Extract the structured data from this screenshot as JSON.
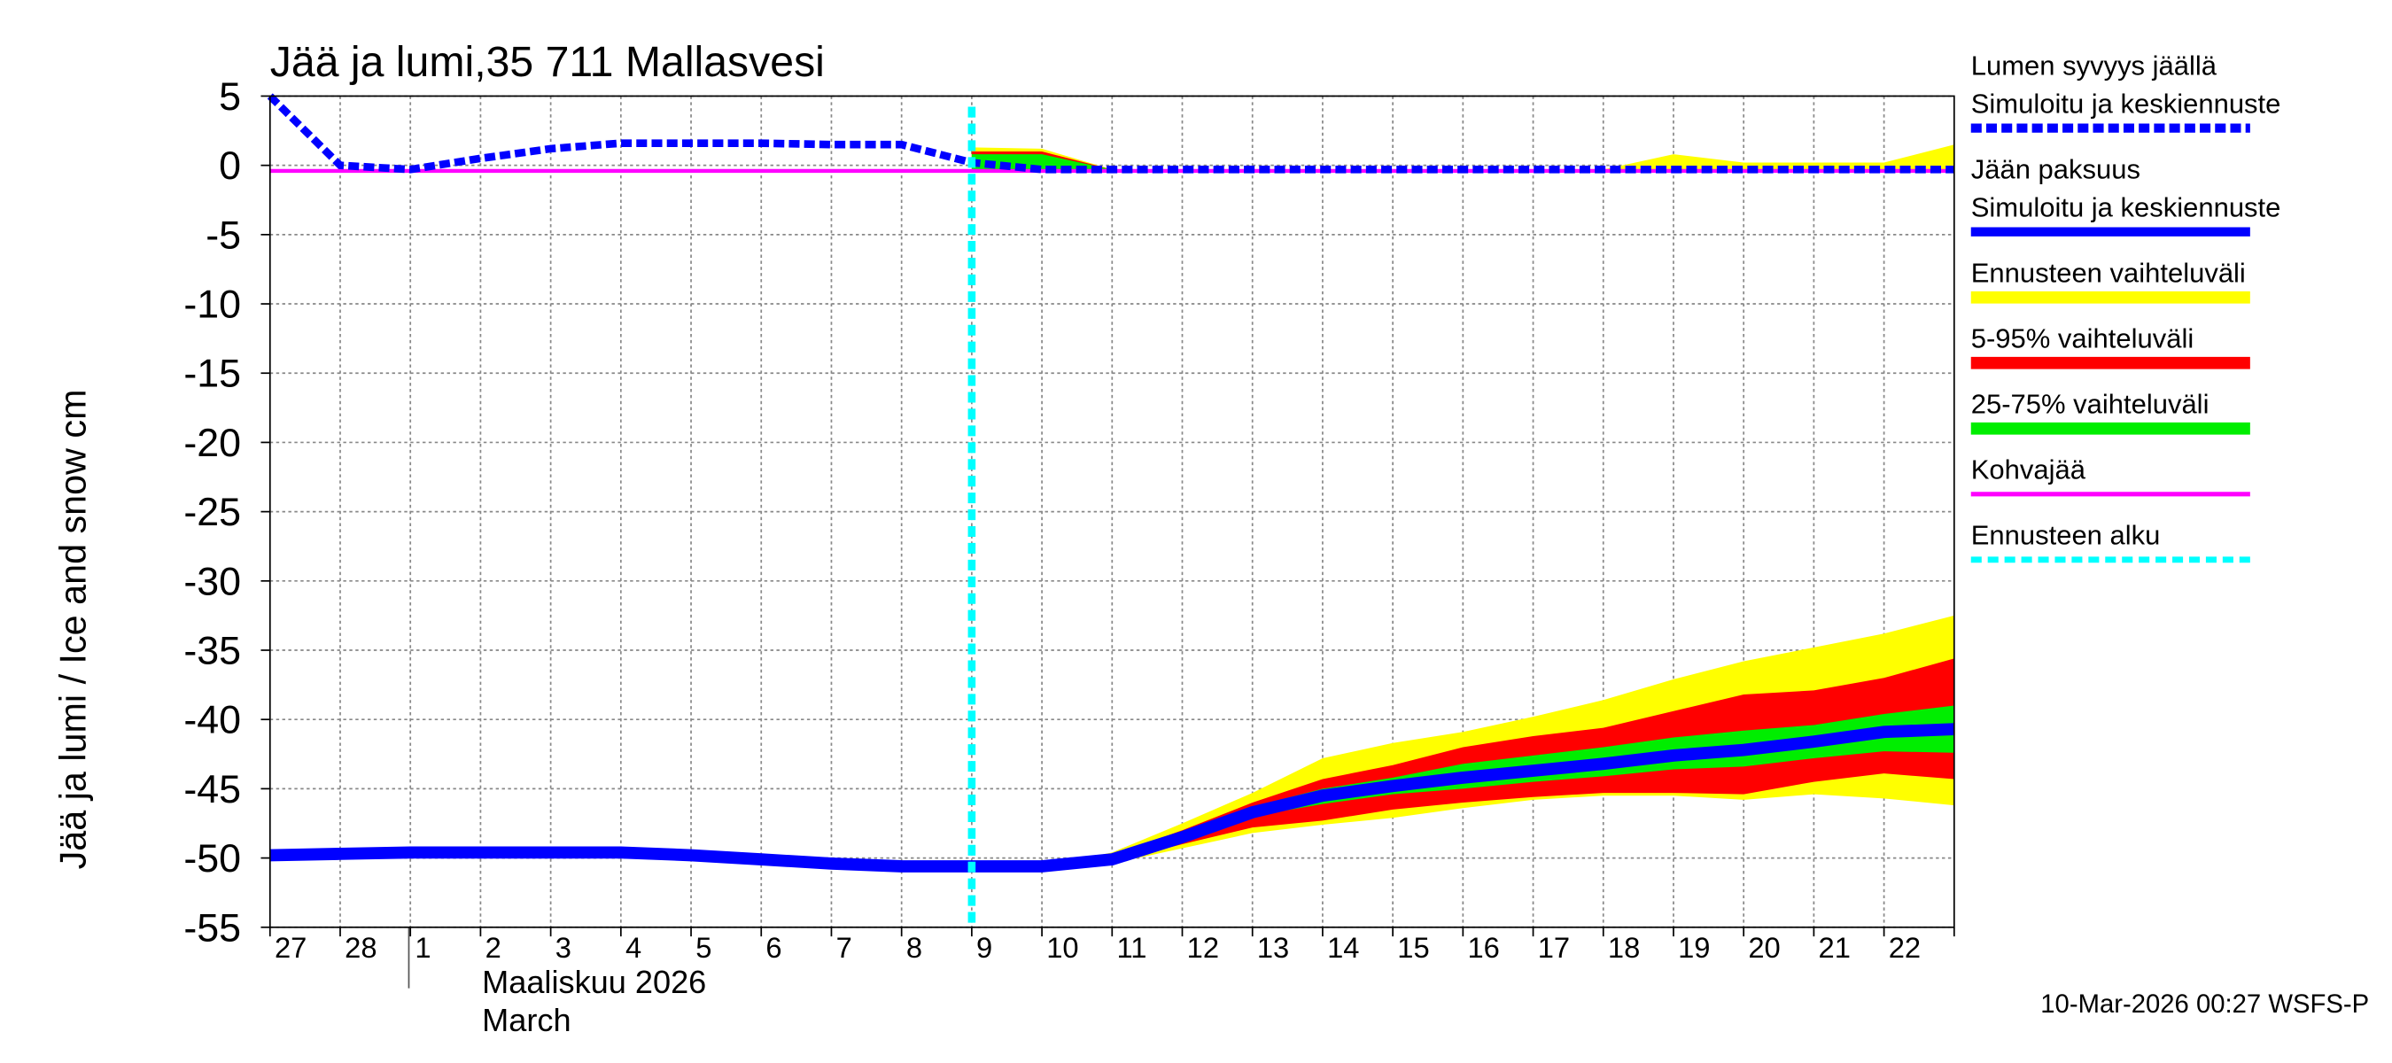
{
  "chart_data": {
    "type": "area",
    "title": "Jää ja lumi,35 711 Mallasvesi",
    "y_label": "Jää ja lumi / Ice and snow    cm",
    "month_label": [
      "Maaliskuu 2026",
      "March"
    ],
    "footer": "10-Mar-2026 00:27 WSFS-P",
    "categories": [
      "27",
      "28",
      "1",
      "2",
      "3",
      "4",
      "5",
      "6",
      "7",
      "8",
      "9",
      "10",
      "11",
      "12",
      "13",
      "14",
      "15",
      "16",
      "17",
      "18",
      "19",
      "20",
      "21",
      "22",
      null
    ],
    "ylim": [
      -55,
      5
    ],
    "yticks": [
      5,
      0,
      -5,
      -10,
      -15,
      -20,
      -25,
      -30,
      -35,
      -40,
      -45,
      -50,
      -55
    ],
    "grid": true,
    "series": [
      {
        "name": "Ennusteen vaihteluväli",
        "kind": "band",
        "color": "#ffff00",
        "lower": [
          null,
          null,
          null,
          null,
          null,
          null,
          null,
          null,
          null,
          null,
          -50.6,
          -50.6,
          -50.4,
          -49.3,
          -48.2,
          -47.6,
          -47.1,
          -46.4,
          -45.8,
          -45.5,
          -45.5,
          -45.8,
          -45.4,
          -45.7,
          -46.2
        ],
        "upper": [
          null,
          null,
          null,
          null,
          null,
          null,
          null,
          null,
          null,
          null,
          -50.6,
          -50.6,
          -49.6,
          -47.5,
          -45.3,
          -42.8,
          -41.7,
          -40.9,
          -39.8,
          -38.6,
          -37.1,
          -35.8,
          -34.8,
          -33.8,
          -32.5
        ],
        "snow_lower": [
          null,
          null,
          null,
          null,
          null,
          null,
          null,
          null,
          null,
          null,
          -0.3,
          -0.3,
          -0.3,
          -0.3,
          -0.3,
          -0.3,
          -0.3,
          -0.3,
          -0.3,
          -0.3,
          -0.3,
          -0.3,
          -0.3,
          -0.3,
          -0.3
        ],
        "snow_upper": [
          null,
          null,
          null,
          null,
          null,
          null,
          null,
          null,
          null,
          null,
          1.3,
          1.2,
          -0.3,
          -0.3,
          -0.3,
          -0.3,
          -0.3,
          -0.3,
          -0.3,
          -0.3,
          0.8,
          0.2,
          0.2,
          0.2,
          1.5
        ]
      },
      {
        "name": "5-95% vaihteluväli",
        "kind": "band",
        "color": "#ff0000",
        "lower": [
          null,
          null,
          null,
          null,
          null,
          null,
          null,
          null,
          null,
          null,
          -50.6,
          -50.6,
          -50.3,
          -49.0,
          -47.8,
          -47.3,
          -46.5,
          -46.0,
          -45.6,
          -45.3,
          -45.3,
          -45.4,
          -44.5,
          -43.9,
          -44.3
        ],
        "upper": [
          null,
          null,
          null,
          null,
          null,
          null,
          null,
          null,
          null,
          null,
          -50.6,
          -50.6,
          -49.8,
          -48.0,
          -46.0,
          -44.3,
          -43.3,
          -42.0,
          -41.2,
          -40.6,
          -39.4,
          -38.2,
          -37.9,
          -37.0,
          -35.6
        ],
        "snow_lower": [
          null,
          null,
          null,
          null,
          null,
          null,
          null,
          null,
          null,
          null,
          -0.3,
          -0.3,
          -0.3,
          -0.3,
          -0.3,
          -0.3,
          -0.3,
          -0.3,
          -0.3,
          -0.3,
          -0.3,
          -0.3,
          -0.3,
          -0.3,
          -0.3
        ],
        "snow_upper": [
          null,
          null,
          null,
          null,
          null,
          null,
          null,
          null,
          null,
          null,
          1.0,
          1.0,
          -0.3,
          -0.3,
          -0.3,
          -0.3,
          -0.3,
          -0.3,
          -0.3,
          -0.3,
          -0.3,
          -0.3,
          -0.3,
          -0.3,
          -0.3
        ]
      },
      {
        "name": "25-75% vaihteluväli",
        "kind": "band",
        "color": "#00ee00",
        "lower": [
          null,
          null,
          null,
          null,
          null,
          null,
          null,
          null,
          null,
          null,
          -50.6,
          -50.6,
          -50.2,
          -48.8,
          -47.0,
          -46.1,
          -45.4,
          -45.0,
          -44.5,
          -44.1,
          -43.6,
          -43.4,
          -42.8,
          -42.3,
          -42.4
        ],
        "upper": [
          null,
          null,
          null,
          null,
          null,
          null,
          null,
          null,
          null,
          null,
          -50.6,
          -50.6,
          -50.0,
          -48.3,
          -46.3,
          -45.0,
          -44.2,
          -43.2,
          -42.6,
          -42.0,
          -41.3,
          -40.8,
          -40.4,
          -39.6,
          -39.0
        ],
        "snow_lower": [
          null,
          null,
          null,
          null,
          null,
          null,
          null,
          null,
          null,
          null,
          -0.3,
          -0.3,
          -0.3,
          -0.3,
          -0.3,
          -0.3,
          -0.3,
          -0.3,
          -0.3,
          -0.3,
          -0.3,
          -0.3,
          -0.3,
          -0.3,
          -0.3
        ],
        "snow_upper": [
          null,
          null,
          null,
          null,
          null,
          null,
          null,
          null,
          null,
          null,
          0.8,
          0.8,
          -0.3,
          -0.3,
          -0.3,
          -0.3,
          -0.3,
          -0.3,
          -0.3,
          -0.3,
          -0.3,
          -0.3,
          -0.3,
          -0.3,
          -0.3
        ]
      },
      {
        "name": "Kohvajää",
        "kind": "line",
        "color": "#ff00ff",
        "width": 2.5,
        "dashed": false,
        "values": [
          -0.4,
          -0.4,
          -0.4,
          -0.4,
          -0.4,
          -0.4,
          -0.4,
          -0.4,
          -0.4,
          -0.4,
          -0.4,
          -0.4,
          -0.4,
          -0.4,
          -0.4,
          -0.4,
          -0.4,
          -0.4,
          -0.4,
          -0.4,
          -0.4,
          -0.4,
          -0.4,
          -0.4,
          -0.4
        ]
      },
      {
        "group": "Lumen syvyys jäällä",
        "name": "Simuloitu ja keskiennuste",
        "kind": "line",
        "color": "#0000ff",
        "width": 5,
        "dashed": true,
        "values": [
          5,
          0,
          -0.3,
          0.5,
          1.2,
          1.6,
          1.6,
          1.6,
          1.5,
          1.5,
          0.2,
          -0.3,
          -0.3,
          -0.3,
          -0.3,
          -0.3,
          -0.3,
          -0.3,
          -0.3,
          -0.3,
          -0.3,
          -0.3,
          -0.3,
          -0.3,
          -0.3
        ]
      },
      {
        "group": "Jään paksuus",
        "name": "Simuloitu ja keskiennuste",
        "kind": "line",
        "color": "#0000ff",
        "width": 8,
        "dashed": false,
        "values": [
          -49.8,
          -49.7,
          -49.6,
          -49.6,
          -49.6,
          -49.6,
          -49.8,
          -50.1,
          -50.4,
          -50.6,
          -50.6,
          -50.6,
          -50.1,
          -48.5,
          -46.7,
          -45.5,
          -44.8,
          -44.2,
          -43.7,
          -43.2,
          -42.6,
          -42.2,
          -41.6,
          -40.9,
          -40.7
        ]
      }
    ],
    "forecast_start": {
      "name": "Ennusteen alku",
      "index": 10,
      "color": "#00ffff"
    }
  }
}
